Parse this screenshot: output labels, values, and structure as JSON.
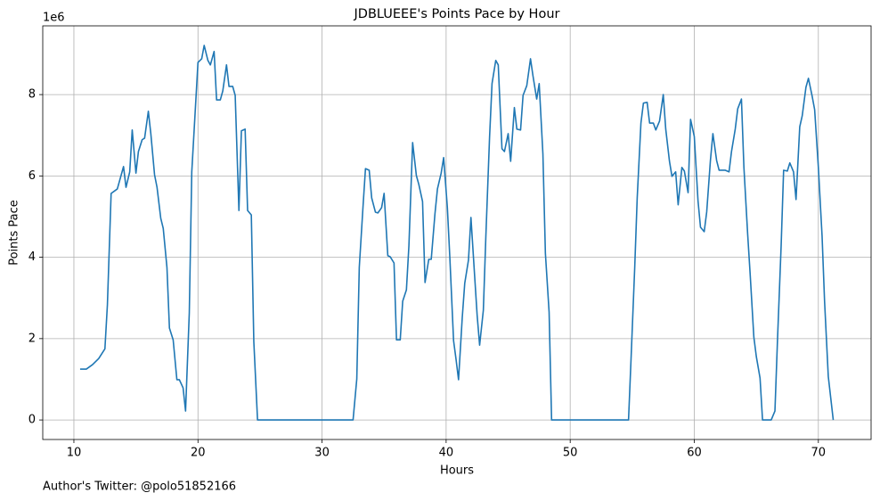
{
  "chart_data": {
    "type": "line",
    "title": "JDBLUEEE's Points Pace by Hour",
    "x_label": "Hours",
    "y_label": "Points Pace",
    "y_offset_label": "1e6",
    "footnote": "Author's Twitter: @polo51852166",
    "color": "#1f77b4",
    "grid": true,
    "xlim": [
      7.49,
      74.25
    ],
    "ylim": [
      -0.48,
      9.69
    ],
    "xticks": [
      10,
      20,
      30,
      40,
      50,
      60,
      70
    ],
    "yticks": [
      0,
      2,
      4,
      6,
      8
    ],
    "x": [
      10.5,
      11.0,
      11.5,
      12.0,
      12.5,
      12.7,
      13.0,
      13.5,
      14.0,
      14.2,
      14.5,
      14.7,
      15.0,
      15.2,
      15.5,
      15.7,
      16.0,
      16.2,
      16.5,
      16.7,
      17.0,
      17.2,
      17.5,
      17.7,
      18.0,
      18.3,
      18.5,
      18.8,
      19.0,
      19.3,
      19.5,
      20.0,
      20.3,
      20.5,
      20.8,
      21.0,
      21.3,
      21.5,
      21.8,
      22.0,
      22.3,
      22.5,
      22.8,
      23.0,
      23.3,
      23.5,
      23.8,
      24.0,
      24.3,
      24.5,
      24.8,
      32.5,
      32.8,
      33.0,
      33.3,
      33.5,
      33.8,
      34.0,
      34.3,
      34.5,
      34.8,
      35.0,
      35.3,
      35.5,
      35.8,
      36.0,
      36.3,
      36.5,
      36.8,
      37.0,
      37.3,
      37.6,
      37.8,
      38.1,
      38.3,
      38.6,
      38.8,
      39.1,
      39.3,
      39.6,
      39.8,
      40.1,
      40.3,
      40.6,
      40.8,
      41.0,
      41.3,
      41.5,
      41.8,
      42.0,
      42.3,
      42.5,
      42.7,
      43.0,
      43.2,
      43.5,
      43.7,
      44.0,
      44.2,
      44.5,
      44.7,
      45.0,
      45.2,
      45.5,
      45.7,
      46.0,
      46.2,
      46.5,
      46.8,
      47.0,
      47.3,
      47.5,
      47.8,
      48.0,
      48.3,
      48.5,
      54.7,
      54.9,
      55.2,
      55.4,
      55.7,
      55.9,
      56.2,
      56.4,
      56.7,
      56.9,
      57.2,
      57.5,
      57.7,
      58.0,
      58.2,
      58.5,
      58.7,
      59.0,
      59.2,
      59.5,
      59.7,
      60.0,
      60.3,
      60.5,
      60.8,
      61.0,
      61.3,
      61.5,
      61.8,
      62.0,
      62.3,
      62.5,
      62.8,
      63.0,
      63.3,
      63.5,
      63.8,
      64.0,
      64.3,
      64.5,
      64.8,
      65.0,
      65.3,
      65.5,
      66.2,
      66.5,
      66.7,
      67.0,
      67.2,
      67.5,
      67.7,
      68.0,
      68.2,
      68.5,
      68.7,
      69.0,
      69.2,
      69.5,
      69.7,
      70.0,
      70.3,
      70.5,
      70.8,
      71.2
    ],
    "values": [
      1.25,
      1.25,
      1.36,
      1.51,
      1.75,
      2.83,
      5.57,
      5.68,
      6.23,
      5.72,
      6.1,
      7.13,
      6.07,
      6.6,
      6.89,
      6.93,
      7.59,
      7.04,
      6.03,
      5.72,
      4.96,
      4.71,
      3.75,
      2.26,
      1.97,
      0.99,
      0.99,
      0.79,
      0.22,
      2.63,
      6.1,
      8.79,
      8.88,
      9.21,
      8.84,
      8.73,
      9.06,
      7.87,
      7.87,
      8.09,
      8.73,
      8.2,
      8.2,
      7.98,
      5.15,
      7.11,
      7.15,
      5.15,
      5.04,
      1.93,
      0,
      0,
      1.01,
      3.75,
      5.24,
      6.18,
      6.14,
      5.46,
      5.11,
      5.09,
      5.22,
      5.57,
      4.04,
      4.01,
      3.86,
      1.97,
      1.97,
      2.92,
      3.2,
      4.28,
      6.82,
      6.01,
      5.79,
      5.37,
      3.38,
      3.95,
      3.95,
      5.07,
      5.68,
      6.07,
      6.45,
      5.22,
      3.99,
      1.95,
      1.49,
      0.99,
      2.52,
      3.36,
      3.93,
      4.98,
      3.53,
      2.57,
      1.84,
      2.7,
      4.5,
      6.95,
      8.27,
      8.84,
      8.73,
      6.67,
      6.6,
      7.04,
      6.36,
      7.68,
      7.15,
      7.13,
      7.98,
      8.22,
      8.88,
      8.46,
      7.89,
      8.27,
      6.54,
      4.1,
      2.65,
      0,
      0,
      1.47,
      3.75,
      5.46,
      7.3,
      7.79,
      7.81,
      7.3,
      7.3,
      7.13,
      7.35,
      8.0,
      7.15,
      6.36,
      5.99,
      6.1,
      5.29,
      6.21,
      6.12,
      5.59,
      7.39,
      6.97,
      5.39,
      4.74,
      4.63,
      5.11,
      6.38,
      7.04,
      6.38,
      6.14,
      6.14,
      6.14,
      6.1,
      6.6,
      7.15,
      7.65,
      7.89,
      6.21,
      4.58,
      3.6,
      2.04,
      1.56,
      1.03,
      0,
      0,
      0.22,
      1.91,
      4.28,
      6.14,
      6.12,
      6.32,
      6.1,
      5.42,
      7.21,
      7.48,
      8.18,
      8.4,
      7.96,
      7.63,
      6.21,
      4.52,
      2.92,
      1.07,
      0
    ]
  }
}
